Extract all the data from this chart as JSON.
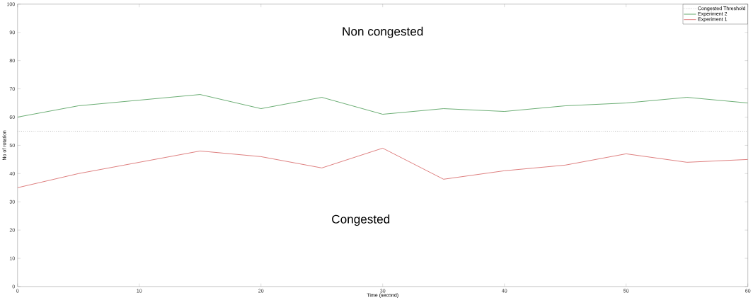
{
  "chart_data": {
    "type": "line",
    "xlabel": "Time (second)",
    "ylabel": "No of rotation",
    "x": [
      0,
      5,
      10,
      15,
      20,
      25,
      30,
      35,
      40,
      45,
      50,
      55,
      60
    ],
    "series": [
      {
        "name": "Experiment 2",
        "color": "#2e8b3a",
        "values": [
          60,
          64,
          66,
          68,
          63,
          67,
          61,
          63,
          62,
          64,
          65,
          67,
          65
        ]
      },
      {
        "name": "Experiment 1",
        "color": "#d04a4a",
        "values": [
          35,
          40,
          44,
          48,
          46,
          42,
          49,
          38,
          41,
          43,
          47,
          44,
          45
        ]
      }
    ],
    "ref_lines": [
      {
        "axis": "y",
        "value": 55,
        "label": "Congested Threshold",
        "color": "#8c8c8c",
        "line_style": "dotted"
      }
    ],
    "annotations": [
      "Non congested",
      "Congested"
    ],
    "xlim": [
      0,
      60
    ],
    "ylim": [
      0,
      100
    ],
    "xticks": [
      0,
      10,
      20,
      30,
      40,
      50,
      60
    ],
    "yticks": [
      0,
      10,
      20,
      30,
      40,
      50,
      60,
      70,
      80,
      90,
      100
    ],
    "grid": false,
    "legend": "top right",
    "line_style": "solid",
    "marker": "none"
  }
}
